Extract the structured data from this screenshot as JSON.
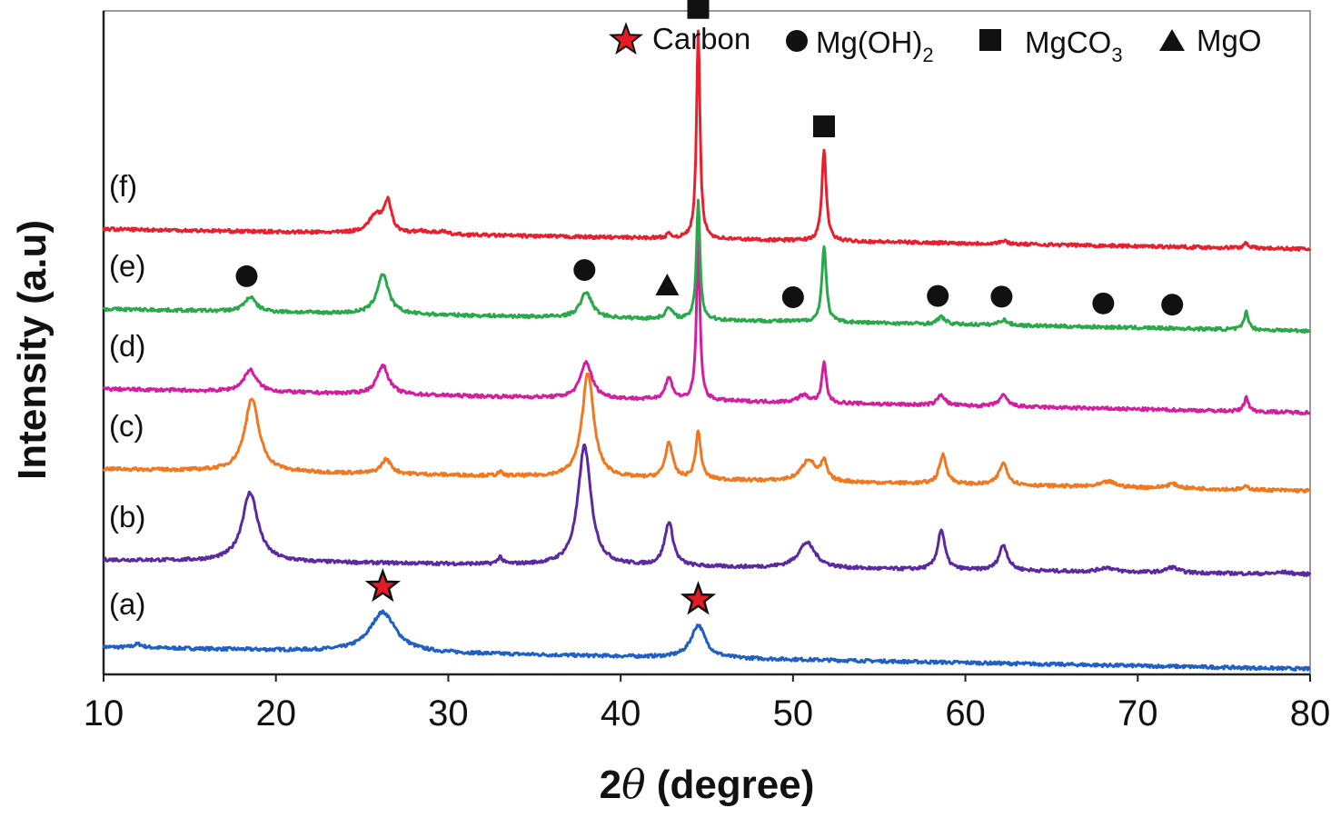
{
  "chart_data": {
    "type": "line",
    "xlabel_prefix": "2",
    "xlabel_symbol": "θ",
    "xlabel_suffix": " (degree)",
    "ylabel": "Intensity (a.u)",
    "xlim": [
      10,
      80
    ],
    "xticks": [
      10,
      20,
      30,
      40,
      50,
      60,
      70,
      80
    ],
    "y_ticks_shown": false,
    "legend": [
      {
        "marker": "star",
        "label": "Carbon",
        "sub": ""
      },
      {
        "marker": "circle",
        "label": "Mg(OH)",
        "sub": "2"
      },
      {
        "marker": "square",
        "label": "MgCO",
        "sub": "3"
      },
      {
        "marker": "triangle",
        "label": "MgO",
        "sub": ""
      }
    ],
    "series": [
      {
        "name": "(a)",
        "color": "#1f5fc6",
        "offset": 0,
        "baseline_start": 0.0,
        "baseline_end": -0.6,
        "peaks": [
          [
            26.2,
            1.1,
            0.9
          ],
          [
            44.5,
            0.9,
            0.5
          ],
          [
            12.0,
            0.1,
            0.3
          ]
        ],
        "markers": [
          {
            "type": "star",
            "x": 26.2
          },
          {
            "type": "star",
            "x": 44.5
          }
        ]
      },
      {
        "name": "(b)",
        "color": "#5b2aa0",
        "offset": 2.4,
        "baseline_start": 0.0,
        "baseline_end": -0.4,
        "peaks": [
          [
            18.5,
            1.9,
            0.55
          ],
          [
            33.0,
            0.2,
            0.15
          ],
          [
            37.9,
            3.3,
            0.45
          ],
          [
            42.8,
            1.2,
            0.3
          ],
          [
            50.8,
            0.7,
            0.6
          ],
          [
            58.6,
            1.1,
            0.25
          ],
          [
            62.2,
            0.7,
            0.3
          ],
          [
            68.2,
            0.12,
            0.5
          ],
          [
            72.0,
            0.15,
            0.4
          ],
          [
            78.5,
            0.05,
            0.5
          ]
        ],
        "markers": []
      },
      {
        "name": "(c)",
        "color": "#f07820",
        "offset": 4.9,
        "baseline_start": 0.0,
        "baseline_end": -0.6,
        "peaks": [
          [
            18.6,
            2.0,
            0.5
          ],
          [
            26.4,
            0.4,
            0.35
          ],
          [
            33.0,
            0.1,
            0.15
          ],
          [
            38.1,
            2.9,
            0.4
          ],
          [
            42.8,
            1.0,
            0.25
          ],
          [
            44.5,
            1.3,
            0.18
          ],
          [
            50.9,
            0.6,
            0.5
          ],
          [
            51.8,
            0.5,
            0.2
          ],
          [
            58.7,
            0.8,
            0.25
          ],
          [
            62.2,
            0.6,
            0.3
          ],
          [
            68.3,
            0.15,
            0.5
          ],
          [
            72.0,
            0.12,
            0.4
          ],
          [
            76.3,
            0.08,
            0.2
          ]
        ],
        "markers": []
      },
      {
        "name": "(d)",
        "color": "#d41ea0",
        "offset": 7.1,
        "baseline_start": 0.0,
        "baseline_end": -0.65,
        "peaks": [
          [
            18.5,
            0.6,
            0.45
          ],
          [
            26.2,
            0.8,
            0.4
          ],
          [
            38.0,
            1.0,
            0.4
          ],
          [
            42.8,
            0.6,
            0.25
          ],
          [
            44.5,
            4.4,
            0.12
          ],
          [
            50.6,
            0.2,
            0.4
          ],
          [
            51.8,
            1.1,
            0.15
          ],
          [
            58.6,
            0.3,
            0.25
          ],
          [
            62.2,
            0.3,
            0.3
          ],
          [
            76.3,
            0.4,
            0.15
          ]
        ],
        "markers": []
      },
      {
        "name": "(e)",
        "color": "#2aa84a",
        "offset": 9.3,
        "baseline_start": 0.0,
        "baseline_end": -0.6,
        "peaks": [
          [
            18.5,
            0.4,
            0.4
          ],
          [
            26.2,
            1.1,
            0.4
          ],
          [
            38.0,
            0.7,
            0.4
          ],
          [
            42.8,
            0.3,
            0.25
          ],
          [
            44.5,
            3.3,
            0.12
          ],
          [
            51.8,
            2.1,
            0.15
          ],
          [
            58.6,
            0.2,
            0.25
          ],
          [
            62.2,
            0.15,
            0.3
          ],
          [
            76.3,
            0.5,
            0.15
          ]
        ],
        "markers": [
          {
            "type": "circle",
            "x": 18.3
          },
          {
            "type": "circle",
            "x": 37.9
          },
          {
            "type": "triangle",
            "x": 42.7
          },
          {
            "type": "circle",
            "x": 50.0
          },
          {
            "type": "circle",
            "x": 58.4
          },
          {
            "type": "circle",
            "x": 62.1
          },
          {
            "type": "circle",
            "x": 68.0
          },
          {
            "type": "circle",
            "x": 72.0
          }
        ]
      },
      {
        "name": "(f)",
        "color": "#e8202e",
        "offset": 11.5,
        "baseline_start": 0.0,
        "baseline_end": -0.55,
        "peaks": [
          [
            25.8,
            0.5,
            0.5
          ],
          [
            26.5,
            0.8,
            0.25
          ],
          [
            28.5,
            0.08,
            0.4
          ],
          [
            29.6,
            0.08,
            0.3
          ],
          [
            42.8,
            0.1,
            0.2
          ],
          [
            44.5,
            5.7,
            0.12
          ],
          [
            51.8,
            2.5,
            0.15
          ],
          [
            62.2,
            0.08,
            0.3
          ],
          [
            76.3,
            0.15,
            0.15
          ]
        ],
        "markers": [
          {
            "type": "square",
            "x": 44.5
          },
          {
            "type": "square",
            "x": 51.8
          }
        ]
      }
    ]
  }
}
